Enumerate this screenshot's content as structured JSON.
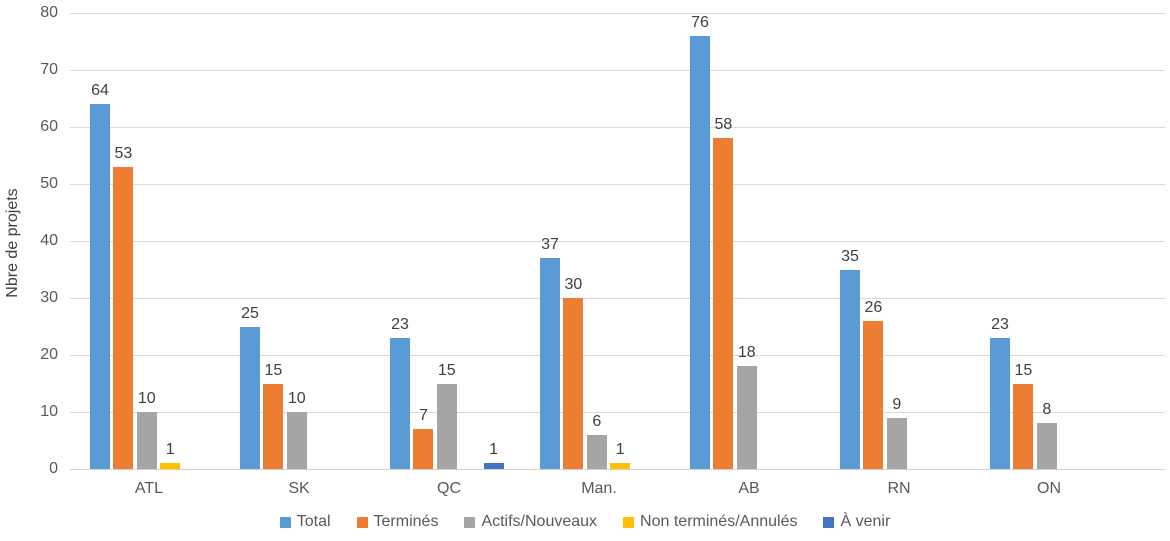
{
  "chart_data": {
    "type": "bar",
    "title": "",
    "xlabel": "",
    "ylabel": "Nbre de projets",
    "ylim": [
      0,
      80
    ],
    "yticks": [
      0,
      10,
      20,
      30,
      40,
      50,
      60,
      70,
      80
    ],
    "grid": true,
    "legend_position": "bottom",
    "categories": [
      "ATL",
      "SK",
      "QC",
      "Man.",
      "AB",
      "RN",
      "ON"
    ],
    "series": [
      {
        "name": "Total",
        "color": "#5b9bd5",
        "values": [
          64,
          25,
          23,
          37,
          76,
          35,
          23
        ]
      },
      {
        "name": "Terminés",
        "color": "#ed7d31",
        "values": [
          53,
          15,
          7,
          30,
          58,
          26,
          15
        ]
      },
      {
        "name": "Actifs/Nouveaux",
        "color": "#a5a5a5",
        "values": [
          10,
          10,
          15,
          6,
          18,
          9,
          8
        ]
      },
      {
        "name": "Non terminés/Annulés",
        "color": "#ffc000",
        "values": [
          1,
          null,
          null,
          1,
          null,
          null,
          null
        ]
      },
      {
        "name": "À venir",
        "color": "#4472c4",
        "values": [
          null,
          null,
          1,
          null,
          null,
          null,
          null
        ]
      }
    ],
    "colors": {
      "gridline": "#d9d9d9",
      "axis_line": "#d2d2d2",
      "tick_text": "#595959",
      "value_label_text": "#404040"
    }
  }
}
